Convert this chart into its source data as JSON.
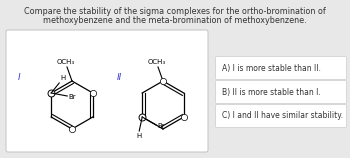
{
  "title_line1": "Compare the stability of the sigma complexes for the ortho-bromination of",
  "title_line2": "methoxybenzene and the meta-bromination of methoxybenzene.",
  "title_fontsize": 5.8,
  "answer_A": "A) I is more stable than II.",
  "answer_B": "B) II is more stable than I.",
  "answer_C": "C) I and II have similar stability.",
  "answer_fontsize": 5.5,
  "bg_color": "#e8e8e8",
  "label_I": "I",
  "label_II": "II",
  "label_OCH3": "OCH₃",
  "label_H": "H",
  "label_Br": "Br"
}
